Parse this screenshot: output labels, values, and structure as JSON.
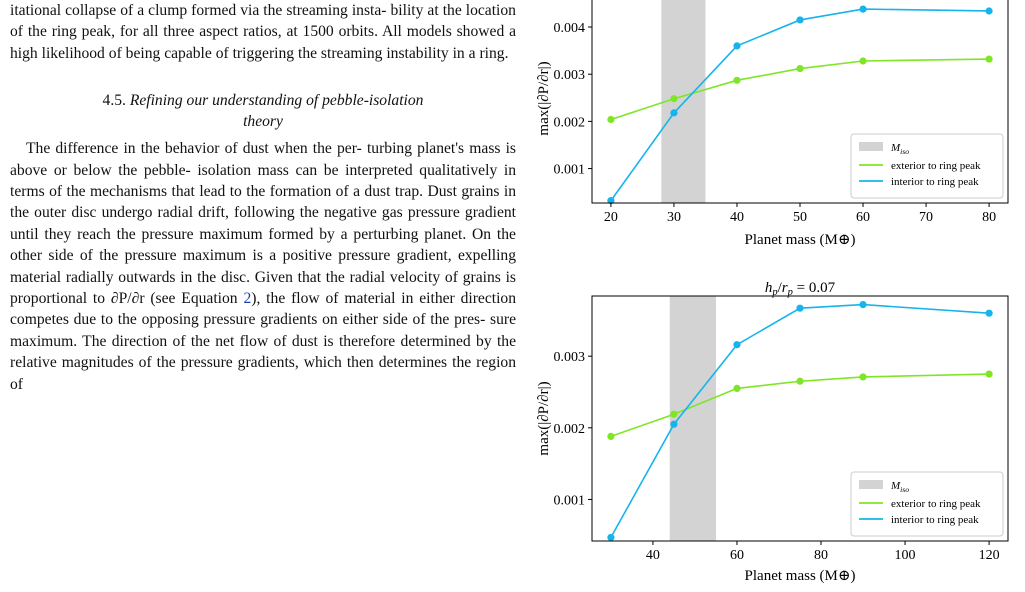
{
  "text": {
    "intro_lines": [
      "itational collapse of a clump formed via the streaming insta-",
      "bility at the location of the ring peak, for all three aspect",
      "ratios, at 1500 orbits. All models showed a high likelihood",
      "of being capable of triggering the streaming instability in a",
      "ring."
    ],
    "section_number": "4.5.",
    "section_title_line1": "Refining our understanding of pebble-isolation",
    "section_title_line2": "theory",
    "body_lines": [
      "The difference in the behavior of dust when the per-",
      "turbing planet's mass is above or below the pebble-",
      "isolation mass can be interpreted qualitatively in terms",
      "of the mechanisms that lead to the formation of a dust",
      "trap. Dust grains in the outer disc undergo radial drift,",
      "following the negative gas pressure gradient until they",
      "reach the pressure maximum formed by a perturbing",
      "planet. On the other side of the pressure maximum is",
      "a positive pressure gradient, expelling material radially",
      "outwards in the disc. Given that the radial velocity of",
      "grains is proportional to ∂P/∂r (see Equation 2), the",
      "flow of material in either direction competes due to the",
      "opposing pressure gradients on either side of the pres-",
      "sure maximum. The direction of the net flow of dust is",
      "therefore determined by the relative magnitudes of the",
      "pressure gradients, which then determines the region of"
    ]
  },
  "colors": {
    "exterior": "#7fe625",
    "interior": "#16b4ec",
    "shade": "#d3d3d3"
  },
  "chart_data": [
    {
      "type": "line",
      "title": "",
      "xlabel": "Planet mass (M⊕)",
      "ylabel": "max(|∂P/∂r|)",
      "xlim": [
        17.0,
        83.0
      ],
      "ylim": [
        0.00027,
        0.0047
      ],
      "xticks": [
        20,
        30,
        40,
        50,
        60,
        70,
        80
      ],
      "yticks": [
        0.001,
        0.002,
        0.003,
        0.004
      ],
      "ytick_labels": [
        "0.001",
        "0.002",
        "0.003",
        "0.004"
      ],
      "grid": false,
      "legend_position": "bottom-right",
      "iso_band": {
        "label": "M_iso",
        "x0": 28,
        "x1": 35
      },
      "series": [
        {
          "name": "exterior to ring peak",
          "x": [
            20,
            30,
            40,
            50,
            60,
            80
          ],
          "y": [
            0.00204,
            0.00248,
            0.00287,
            0.00312,
            0.00328,
            0.00332
          ]
        },
        {
          "name": "interior to ring peak",
          "x": [
            20,
            30,
            40,
            50,
            60,
            80
          ],
          "y": [
            0.00032,
            0.00218,
            0.0036,
            0.00415,
            0.00438,
            0.00434
          ]
        }
      ]
    },
    {
      "type": "line",
      "title": "h_p/r_p = 0.07",
      "xlabel": "Planet mass (M⊕)",
      "ylabel": "max(|∂P/∂r|)",
      "xlim": [
        25.5,
        124.5
      ],
      "ylim": [
        0.00042,
        0.00384
      ],
      "xticks": [
        40,
        60,
        80,
        100,
        120
      ],
      "yticks": [
        0.001,
        0.002,
        0.003
      ],
      "ytick_labels": [
        "0.001",
        "0.002",
        "0.003"
      ],
      "grid": false,
      "legend_position": "bottom-right",
      "iso_band": {
        "label": "M_iso",
        "x0": 44,
        "x1": 55
      },
      "series": [
        {
          "name": "exterior to ring peak",
          "x": [
            30,
            45,
            60,
            75,
            90,
            120
          ],
          "y": [
            0.00188,
            0.00219,
            0.00255,
            0.00265,
            0.00271,
            0.00275
          ]
        },
        {
          "name": "interior to ring peak",
          "x": [
            30,
            45,
            60,
            75,
            90,
            120
          ],
          "y": [
            0.00047,
            0.00205,
            0.00316,
            0.00367,
            0.00372,
            0.0036
          ]
        }
      ]
    }
  ]
}
